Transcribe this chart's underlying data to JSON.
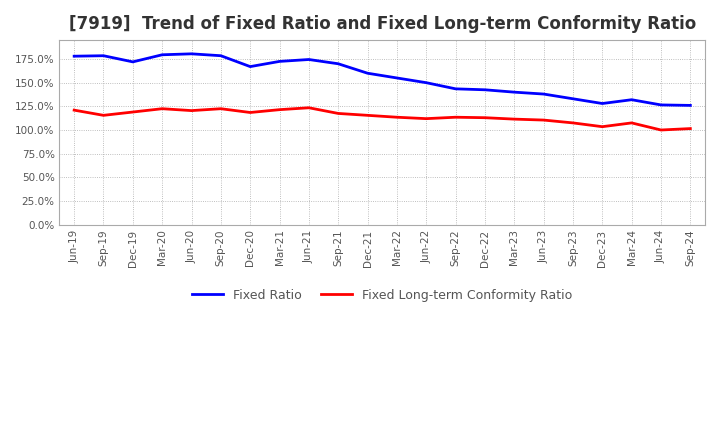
{
  "title": "[7919]  Trend of Fixed Ratio and Fixed Long-term Conformity Ratio",
  "x_labels": [
    "Jun-19",
    "Sep-19",
    "Dec-19",
    "Mar-20",
    "Jun-20",
    "Sep-20",
    "Dec-20",
    "Mar-21",
    "Jun-21",
    "Sep-21",
    "Dec-21",
    "Mar-22",
    "Jun-22",
    "Sep-22",
    "Dec-22",
    "Mar-23",
    "Jun-23",
    "Sep-23",
    "Dec-23",
    "Mar-24",
    "Jun-24",
    "Sep-24"
  ],
  "fixed_ratio": [
    178.0,
    178.5,
    172.0,
    179.5,
    180.5,
    178.5,
    167.0,
    172.5,
    174.5,
    170.0,
    160.0,
    155.0,
    150.0,
    143.5,
    142.5,
    140.0,
    138.0,
    133.0,
    128.0,
    132.0,
    126.5,
    126.0
  ],
  "fixed_lt_ratio": [
    121.0,
    115.5,
    119.0,
    122.5,
    120.5,
    122.5,
    118.5,
    121.5,
    123.5,
    117.5,
    115.5,
    113.5,
    112.0,
    113.5,
    113.0,
    111.5,
    110.5,
    107.5,
    103.5,
    107.5,
    100.0,
    101.5
  ],
  "fixed_ratio_color": "#0000FF",
  "fixed_lt_ratio_color": "#FF0000",
  "ylim": [
    0,
    195
  ],
  "yticks": [
    0,
    25,
    50,
    75,
    100,
    125,
    150,
    175
  ],
  "background_color": "#ffffff",
  "plot_bg_color": "#ffffff",
  "title_fontsize": 12,
  "legend_labels": [
    "Fixed Ratio",
    "Fixed Long-term Conformity Ratio"
  ]
}
